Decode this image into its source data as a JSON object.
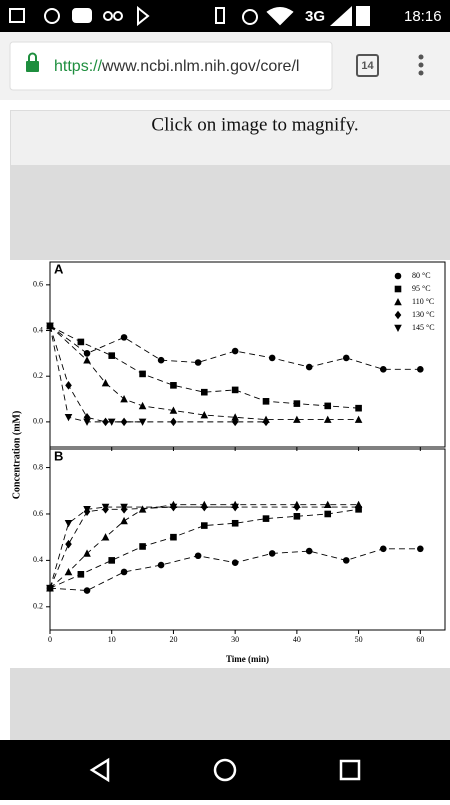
{
  "status_bar": {
    "network": "3G",
    "time": "18:16"
  },
  "browser": {
    "url_scheme": "https://",
    "url_rest": "www.ncbi.nlm.nih.gov/core/l",
    "tab_count": "14"
  },
  "page": {
    "caption": "Click on image to magnify.",
    "y_label": "Concentration (mM)"
  },
  "chart_data": [
    {
      "type": "scatter",
      "panel_label": "A",
      "xlim": [
        0,
        64
      ],
      "ylim": [
        -0.11,
        0.7
      ],
      "yticks": [
        {
          "value": 0,
          "label": "0.0"
        },
        0.2,
        0.4,
        0.6
      ],
      "legend": "upper right",
      "series": [
        {
          "name": "80 °C",
          "marker": "circle",
          "color": "#000000",
          "x": [
            0,
            6,
            12,
            18,
            24,
            30,
            36,
            42,
            48,
            54,
            60
          ],
          "values": [
            0.42,
            0.3,
            0.37,
            0.27,
            0.26,
            0.31,
            0.28,
            0.24,
            0.28,
            0.23,
            0.23
          ]
        },
        {
          "name": "95 °C",
          "marker": "square",
          "color": "#000000",
          "x": [
            0,
            5,
            10,
            15,
            20,
            25,
            30,
            35,
            40,
            45,
            50
          ],
          "values": [
            0.42,
            0.35,
            0.29,
            0.21,
            0.16,
            0.13,
            0.14,
            0.09,
            0.08,
            0.07,
            0.06
          ]
        },
        {
          "name": "110 °C",
          "marker": "triangle",
          "color": "#000000",
          "x": [
            0,
            6,
            9,
            12,
            15,
            20,
            25,
            30,
            35,
            40,
            45,
            50
          ],
          "values": [
            0.42,
            0.27,
            0.17,
            0.1,
            0.07,
            0.05,
            0.03,
            0.02,
            0.01,
            0.01,
            0.01,
            0.01
          ]
        },
        {
          "name": "130 °C",
          "marker": "diamond",
          "color": "#000000",
          "x": [
            0,
            3,
            6,
            9,
            12,
            20,
            30,
            35
          ],
          "values": [
            0.42,
            0.16,
            0.02,
            0,
            0,
            0,
            0,
            0
          ]
        },
        {
          "name": "145 °C",
          "marker": "triangle-down",
          "color": "#000000",
          "x": [
            0,
            3,
            6,
            10,
            15
          ],
          "values": [
            0.42,
            0.02,
            0,
            0,
            0
          ]
        }
      ]
    },
    {
      "type": "scatter",
      "panel_label": "B",
      "x_label": "Time (min)",
      "xlim": [
        0,
        64
      ],
      "ylim": [
        0.1,
        0.88
      ],
      "xticks": [
        0,
        10,
        20,
        30,
        40,
        50,
        60
      ],
      "yticks": [
        0.2,
        0.4,
        0.6,
        0.8
      ],
      "series": [
        {
          "marker": "circle",
          "color": "#000000",
          "x": [
            0,
            6,
            12,
            18,
            24,
            30,
            36,
            42,
            48,
            54,
            60
          ],
          "values": [
            0.28,
            0.27,
            0.35,
            0.38,
            0.42,
            0.39,
            0.43,
            0.44,
            0.4,
            0.45,
            0.45
          ]
        },
        {
          "marker": "square",
          "color": "#000000",
          "x": [
            0,
            5,
            10,
            15,
            20,
            25,
            30,
            35,
            40,
            45,
            50
          ],
          "values": [
            0.28,
            0.34,
            0.4,
            0.46,
            0.5,
            0.55,
            0.56,
            0.58,
            0.59,
            0.6,
            0.62
          ]
        },
        {
          "marker": "triangle",
          "color": "#000000",
          "x": [
            0,
            3,
            6,
            9,
            12,
            15,
            20,
            25,
            30,
            40,
            45,
            50
          ],
          "values": [
            0.28,
            0.35,
            0.43,
            0.5,
            0.57,
            0.62,
            0.64,
            0.64,
            0.64,
            0.64,
            0.64,
            0.64
          ]
        },
        {
          "marker": "diamond",
          "color": "#000000",
          "x": [
            0,
            3,
            6,
            9,
            12,
            20,
            25,
            30,
            40,
            50
          ],
          "values": [
            0.28,
            0.47,
            0.61,
            0.62,
            0.62,
            0.63,
            0.63,
            0.63,
            0.63,
            0.63
          ]
        },
        {
          "marker": "triangle-down",
          "color": "#000000",
          "x": [
            0,
            3,
            6,
            9,
            12,
            20,
            30
          ],
          "values": [
            0.28,
            0.56,
            0.62,
            0.63,
            0.63,
            0.63,
            0.63
          ]
        }
      ]
    }
  ]
}
